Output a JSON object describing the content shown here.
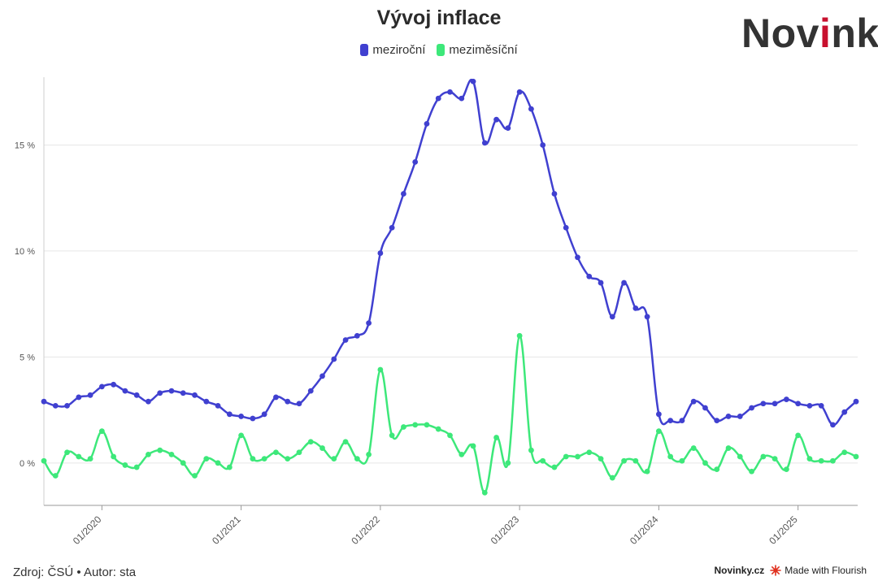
{
  "header": {
    "logo_text": "Novinky",
    "logo_accent_color": "#c8102e"
  },
  "footer": {
    "source": "Zdroj: ČSÚ • Autor: sta",
    "brand": "Novinky.cz",
    "made_with": "Made with Flourish"
  },
  "chart_data": {
    "type": "line",
    "title": "Vývoj inflace",
    "xlabel": "",
    "ylabel": "",
    "x_start": "2019-08",
    "x_end": "2025-06",
    "x_ticks": [
      "01/2020",
      "01/2021",
      "01/2022",
      "01/2023",
      "01/2024",
      "01/2025"
    ],
    "y_ticks": [
      "0 %",
      "5 %",
      "10 %",
      "15 %"
    ],
    "ylim": [
      -2,
      18.2
    ],
    "grid": true,
    "legend_position": "top-center",
    "series": [
      {
        "name": "meziroční",
        "color": "#4040d0",
        "values": [
          2.9,
          2.7,
          2.7,
          3.1,
          3.2,
          3.6,
          3.7,
          3.4,
          3.2,
          2.9,
          3.3,
          3.4,
          3.3,
          3.2,
          2.9,
          2.7,
          2.3,
          2.2,
          2.1,
          2.3,
          3.1,
          2.9,
          2.8,
          3.4,
          4.1,
          4.9,
          5.8,
          6.0,
          6.6,
          9.9,
          11.1,
          12.7,
          14.2,
          16.0,
          17.2,
          17.5,
          17.2,
          18.0,
          15.1,
          16.2,
          15.8,
          17.5,
          16.7,
          15.0,
          12.7,
          11.1,
          9.7,
          8.8,
          8.5,
          6.9,
          8.5,
          7.3,
          6.9,
          2.3,
          2.0,
          2.0,
          2.9,
          2.6,
          2.0,
          2.2,
          2.2,
          2.6,
          2.8,
          2.8,
          3.0,
          2.8,
          2.7,
          2.7,
          1.8,
          2.4,
          2.9
        ]
      },
      {
        "name": "meziměsíční",
        "color": "#3de87a",
        "values": [
          0.1,
          -0.6,
          0.5,
          0.3,
          0.2,
          1.5,
          0.3,
          -0.1,
          -0.2,
          0.4,
          0.6,
          0.4,
          0.0,
          -0.6,
          0.2,
          0.0,
          -0.2,
          1.3,
          0.2,
          0.2,
          0.5,
          0.2,
          0.5,
          1.0,
          0.7,
          0.2,
          1.0,
          0.2,
          0.4,
          4.4,
          1.3,
          1.7,
          1.8,
          1.8,
          1.6,
          1.3,
          0.4,
          0.8,
          -1.4,
          1.2,
          0.0,
          6.0,
          0.6,
          0.1,
          -0.2,
          0.3,
          0.3,
          0.5,
          0.2,
          -0.7,
          0.1,
          0.1,
          -0.4,
          1.5,
          0.3,
          0.1,
          0.7,
          0.0,
          -0.3,
          0.7,
          0.3,
          -0.4,
          0.3,
          0.2,
          -0.3,
          1.3,
          0.2,
          0.1,
          0.1,
          0.5,
          0.3
        ]
      }
    ]
  }
}
